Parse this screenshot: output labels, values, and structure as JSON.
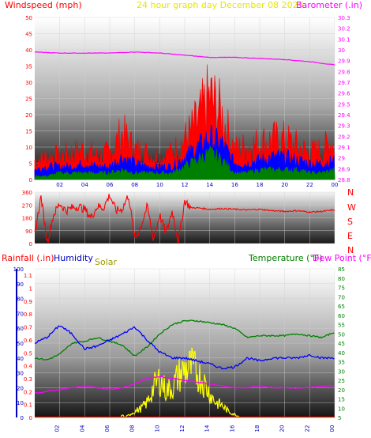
{
  "header": {
    "windspeed_label": "Windspeed (mph)",
    "center_title": "24 hour graph day   December 08 2025",
    "barometer_label": "Barometer (.in)"
  },
  "lower_header": {
    "rainfall_label": "Rainfall (.in)",
    "humidity_label": "Humidity",
    "solar_label": "Solar",
    "temperature_label": "Temperature (°F)",
    "dewpoint_label": "Dew Point (°F)"
  },
  "compass_labels": [
    "N",
    "W",
    "S",
    "E",
    "N"
  ],
  "colors": {
    "wind_gust": "#ff0000",
    "wind_avg": "#0000ff",
    "wind_low": "#008000",
    "barometer": "#ff00ff",
    "direction": "#ff0000",
    "humidity": "#0000ff",
    "temperature": "#008000",
    "dewpoint": "#ff00ff",
    "solar": "#ffff00",
    "rain": "#ff0000"
  },
  "chart_data": [
    {
      "type": "line",
      "name": "wind-barometer",
      "x_tick_labels": [
        "02",
        "04",
        "06",
        "08",
        "10",
        "12",
        "14",
        "16",
        "18",
        "20",
        "22",
        "00"
      ],
      "x_ticks_hours": [
        2,
        4,
        6,
        8,
        10,
        12,
        14,
        16,
        18,
        20,
        22,
        24
      ],
      "ylabel": "Windspeed (mph)",
      "ylim": [
        0,
        50
      ],
      "y_ticks": [
        0,
        5,
        10,
        15,
        20,
        25,
        30,
        35,
        40,
        45,
        50
      ],
      "y2label": "Barometer (.in)",
      "y2lim": [
        28.8,
        30.3
      ],
      "y2_ticks": [
        "28.8",
        "28.9",
        "29",
        "29.1",
        "29.2",
        "29.3",
        "29.4",
        "29.5",
        "29.6",
        "29.7",
        "29.8",
        "29.9",
        "30",
        "30.1",
        "30.2",
        "30.3"
      ],
      "series": [
        {
          "name": "Gust",
          "hours": [
            0,
            1,
            2,
            3,
            4,
            5,
            6,
            7,
            8,
            9,
            10,
            11,
            12,
            13,
            14,
            15,
            16,
            17,
            18,
            19,
            20,
            21,
            22,
            23,
            24
          ],
          "values": [
            6,
            7,
            7,
            8,
            9,
            7,
            8,
            14,
            9,
            8,
            7,
            8,
            12,
            17,
            25,
            19,
            9,
            10,
            11,
            12,
            12,
            10,
            8,
            9,
            12
          ]
        },
        {
          "name": "Average",
          "hours": [
            0,
            1,
            2,
            3,
            4,
            5,
            6,
            7,
            8,
            9,
            10,
            11,
            12,
            13,
            14,
            15,
            16,
            17,
            18,
            19,
            20,
            21,
            22,
            23,
            24
          ],
          "values": [
            3,
            4,
            4,
            4,
            5,
            4,
            4,
            7,
            5,
            4,
            4,
            4,
            7,
            10,
            13,
            11,
            5,
            5,
            6,
            7,
            7,
            6,
            5,
            5,
            6
          ]
        },
        {
          "name": "Low",
          "hours": [
            0,
            1,
            2,
            3,
            4,
            5,
            6,
            7,
            8,
            9,
            10,
            11,
            12,
            13,
            14,
            15,
            16,
            17,
            18,
            19,
            20,
            21,
            22,
            23,
            24
          ],
          "values": [
            1,
            1,
            2,
            2,
            2,
            2,
            2,
            3,
            2,
            2,
            2,
            2,
            4,
            6,
            8,
            6,
            2,
            2,
            3,
            3,
            3,
            3,
            2,
            2,
            3
          ]
        },
        {
          "name": "Barometer",
          "axis": "y2",
          "hours": [
            0,
            2,
            4,
            6,
            8,
            10,
            12,
            14,
            16,
            18,
            20,
            22,
            24
          ],
          "values": [
            29.98,
            29.97,
            29.97,
            29.97,
            29.98,
            29.97,
            29.95,
            29.93,
            29.93,
            29.92,
            29.91,
            29.89,
            29.86
          ]
        }
      ]
    },
    {
      "type": "line",
      "name": "wind-direction",
      "ylim": [
        0,
        360
      ],
      "y_ticks": [
        0,
        90,
        180,
        270,
        360
      ],
      "x_ticks_hours": [
        2,
        4,
        6,
        8,
        10,
        12,
        14,
        16,
        18,
        20,
        22,
        24
      ],
      "series": [
        {
          "name": "Direction",
          "hours": [
            0,
            0.5,
            1,
            1.5,
            2,
            2.5,
            3,
            3.5,
            4,
            4.5,
            5,
            5.5,
            6,
            6.5,
            7,
            7.5,
            8,
            8.5,
            9,
            9.5,
            10,
            10.5,
            11,
            11.5,
            12,
            12.5,
            13,
            14,
            15,
            16,
            17,
            18,
            19,
            20,
            21,
            22,
            23,
            24
          ],
          "values": [
            60,
            330,
            10,
            200,
            280,
            230,
            250,
            260,
            240,
            180,
            260,
            250,
            340,
            230,
            240,
            340,
            30,
            120,
            260,
            30,
            200,
            70,
            230,
            10,
            300,
            250,
            250,
            240,
            245,
            240,
            235,
            240,
            230,
            225,
            230,
            220,
            225,
            235
          ]
        }
      ]
    },
    {
      "type": "line",
      "name": "humidity-temperature",
      "x_tick_labels": [
        "02",
        "04",
        "06",
        "08",
        "10",
        "12",
        "14",
        "16",
        "18",
        "20",
        "22",
        "00"
      ],
      "x_ticks_hours": [
        2,
        4,
        6,
        8,
        10,
        12,
        14,
        16,
        18,
        20,
        22,
        24
      ],
      "ylim": [
        0,
        100
      ],
      "y_ticks": [
        0,
        10,
        20,
        30,
        40,
        50,
        60,
        70,
        80,
        90,
        100
      ],
      "rain_ticks": [
        "0",
        "0.1",
        "0.2",
        "0.3",
        "0.4",
        "0.5",
        "0.6",
        "0.7",
        "0.8",
        "0.9",
        "1",
        "1.1"
      ],
      "y2lim": [
        5,
        85
      ],
      "y2_ticks": [
        5,
        10,
        15,
        20,
        25,
        30,
        35,
        40,
        45,
        50,
        55,
        60,
        65,
        70,
        75,
        80,
        85
      ],
      "series": [
        {
          "name": "Humidity",
          "hours": [
            0,
            1,
            2,
            3,
            4,
            5,
            6,
            7,
            8,
            9,
            10,
            11,
            12,
            13,
            14,
            15,
            16,
            17,
            18,
            19,
            20,
            21,
            22,
            23,
            24
          ],
          "values": [
            50,
            54,
            62,
            56,
            46,
            48,
            52,
            56,
            61,
            52,
            44,
            40,
            40,
            38,
            36,
            33,
            34,
            40,
            38,
            40,
            40,
            40,
            42,
            40,
            40
          ]
        },
        {
          "name": "Temperature",
          "axis": "y2",
          "hours": [
            0,
            1,
            2,
            3,
            4,
            5,
            6,
            7,
            8,
            9,
            10,
            11,
            12,
            13,
            14,
            15,
            16,
            17,
            18,
            19,
            20,
            21,
            22,
            23,
            24
          ],
          "values": [
            37,
            36,
            39,
            45,
            46,
            48,
            46,
            44,
            38,
            43,
            50,
            55,
            57,
            57,
            56,
            55,
            53,
            48,
            49,
            49,
            49,
            50,
            49,
            48,
            51
          ]
        },
        {
          "name": "Dew Point",
          "axis": "y2",
          "hours": [
            0,
            1,
            2,
            3,
            4,
            5,
            6,
            7,
            8,
            9,
            10,
            11,
            12,
            13,
            14,
            15,
            16,
            17,
            18,
            19,
            20,
            21,
            22,
            23,
            24
          ],
          "values": [
            18,
            19,
            20,
            21,
            22,
            21,
            20,
            21,
            23,
            26,
            27,
            26,
            25,
            24,
            23,
            22,
            21,
            21,
            22,
            21,
            21,
            21,
            21,
            22,
            22
          ]
        },
        {
          "name": "Solar",
          "hours": [
            0,
            6.9,
            7,
            7.2,
            8,
            8.5,
            9,
            9.5,
            10,
            10.5,
            11,
            11.5,
            12,
            12.5,
            13,
            13.5,
            14,
            14.5,
            15,
            15.5,
            16,
            16.5,
            24
          ],
          "values": [
            0,
            0,
            2,
            0,
            4,
            6,
            10,
            20,
            26,
            18,
            20,
            28,
            32,
            34,
            30,
            24,
            16,
            10,
            8,
            4,
            2,
            0,
            0
          ]
        },
        {
          "name": "Rainfall",
          "hours": [
            0,
            24
          ],
          "values": [
            0,
            0
          ]
        }
      ]
    }
  ]
}
